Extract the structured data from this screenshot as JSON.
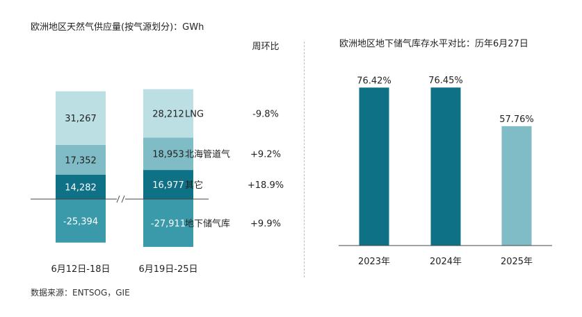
{
  "left_title": "欧洲地区天然气供应量(按气源划分)：GWh",
  "right_title": "欧洲地区地下储气库存水平对比：历年6月27日",
  "source": "数据来源：ENTSOG，GIE",
  "change_header": "周环比",
  "chart_data": [
    {
      "type": "bar",
      "stacked": true,
      "title": "欧洲地区天然气供应量(按气源划分)：GWh",
      "categories": [
        "6月12日-18日",
        "6月19日-25日"
      ],
      "series": [
        {
          "name": "LNG",
          "values": [
            31267,
            28212
          ],
          "labels": [
            "31,267",
            "28,212"
          ],
          "change": "-9.8%",
          "color": "#bcdfe4"
        },
        {
          "name": "北海管道气",
          "values": [
            17352,
            18953
          ],
          "labels": [
            "17,352",
            "18,953"
          ],
          "change": "+9.2%",
          "color": "#7fbcc6"
        },
        {
          "name": "其它",
          "values": [
            14282,
            16977
          ],
          "labels": [
            "14,282",
            "16,977"
          ],
          "change": "+18.9%",
          "color": "#0e7186"
        },
        {
          "name": "地下储气库",
          "values": [
            -25394,
            -27911
          ],
          "labels": [
            "-25,394",
            "-27,911"
          ],
          "change": "+9.9%",
          "color": "#3b9aaa"
        }
      ],
      "axis_break": true
    },
    {
      "type": "bar",
      "title": "欧洲地区地下储气库存水平对比：历年6月27日",
      "categories": [
        "2023年",
        "2024年",
        "2025年"
      ],
      "values": [
        76.42,
        76.45,
        57.76
      ],
      "labels": [
        "76.42%",
        "76.45%",
        "57.76%"
      ],
      "colors": [
        "#0e7186",
        "#0e7186",
        "#7fbcc6"
      ],
      "ylim": [
        0,
        100
      ]
    }
  ]
}
